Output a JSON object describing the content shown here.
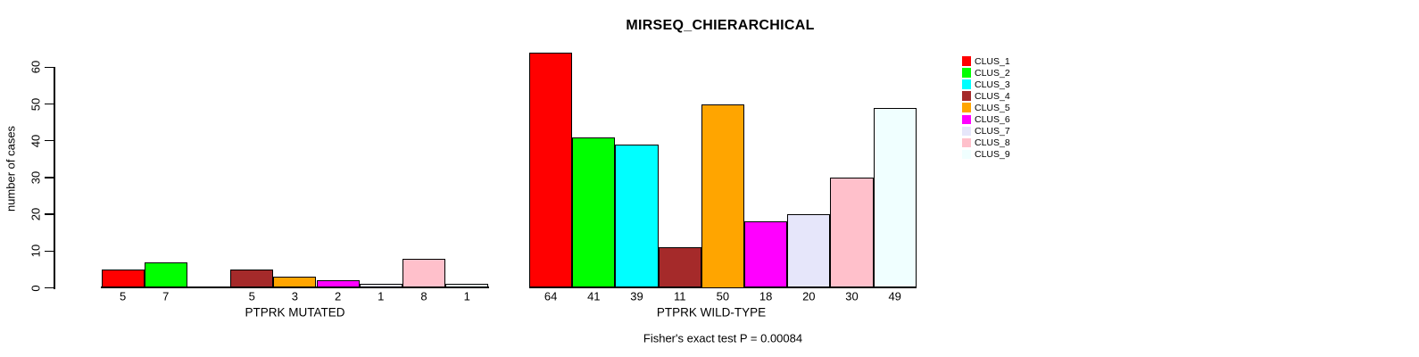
{
  "chart_data": {
    "type": "bar",
    "title": "MIRSEQ_CHIERARCHICAL",
    "ylabel": "number of cases",
    "xlabel": "",
    "ylim": [
      0,
      60
    ],
    "yticks": [
      "0",
      "10",
      "20",
      "30",
      "40",
      "50",
      "60"
    ],
    "grid": false,
    "legend_position": "right-outside",
    "annotation": "Fisher's exact test P = 0.00084",
    "series": [
      {
        "name": "CLUS_1",
        "color": "#FF0000"
      },
      {
        "name": "CLUS_2",
        "color": "#00FF00"
      },
      {
        "name": "CLUS_3",
        "color": "#00FFFF"
      },
      {
        "name": "CLUS_4",
        "color": "#A52A2A"
      },
      {
        "name": "CLUS_5",
        "color": "#FFA500"
      },
      {
        "name": "CLUS_6",
        "color": "#FF00FF"
      },
      {
        "name": "CLUS_7",
        "color": "#E6E6FA"
      },
      {
        "name": "CLUS_8",
        "color": "#FFC0CB"
      },
      {
        "name": "CLUS_9",
        "color": "#F0FFFF"
      }
    ],
    "groups": [
      {
        "label": "PTPRK MUTATED",
        "values": [
          5,
          7,
          0,
          5,
          3,
          2,
          1,
          8,
          1
        ],
        "bar_labels": [
          "5",
          "7",
          "",
          "5",
          "3",
          "2",
          "1",
          "8",
          "1"
        ]
      },
      {
        "label": "PTPRK WILD-TYPE",
        "values": [
          64,
          41,
          39,
          11,
          50,
          18,
          20,
          30,
          49
        ],
        "bar_labels": [
          "64",
          "41",
          "39",
          "11",
          "50",
          "18",
          "20",
          "30",
          "49"
        ]
      }
    ]
  }
}
